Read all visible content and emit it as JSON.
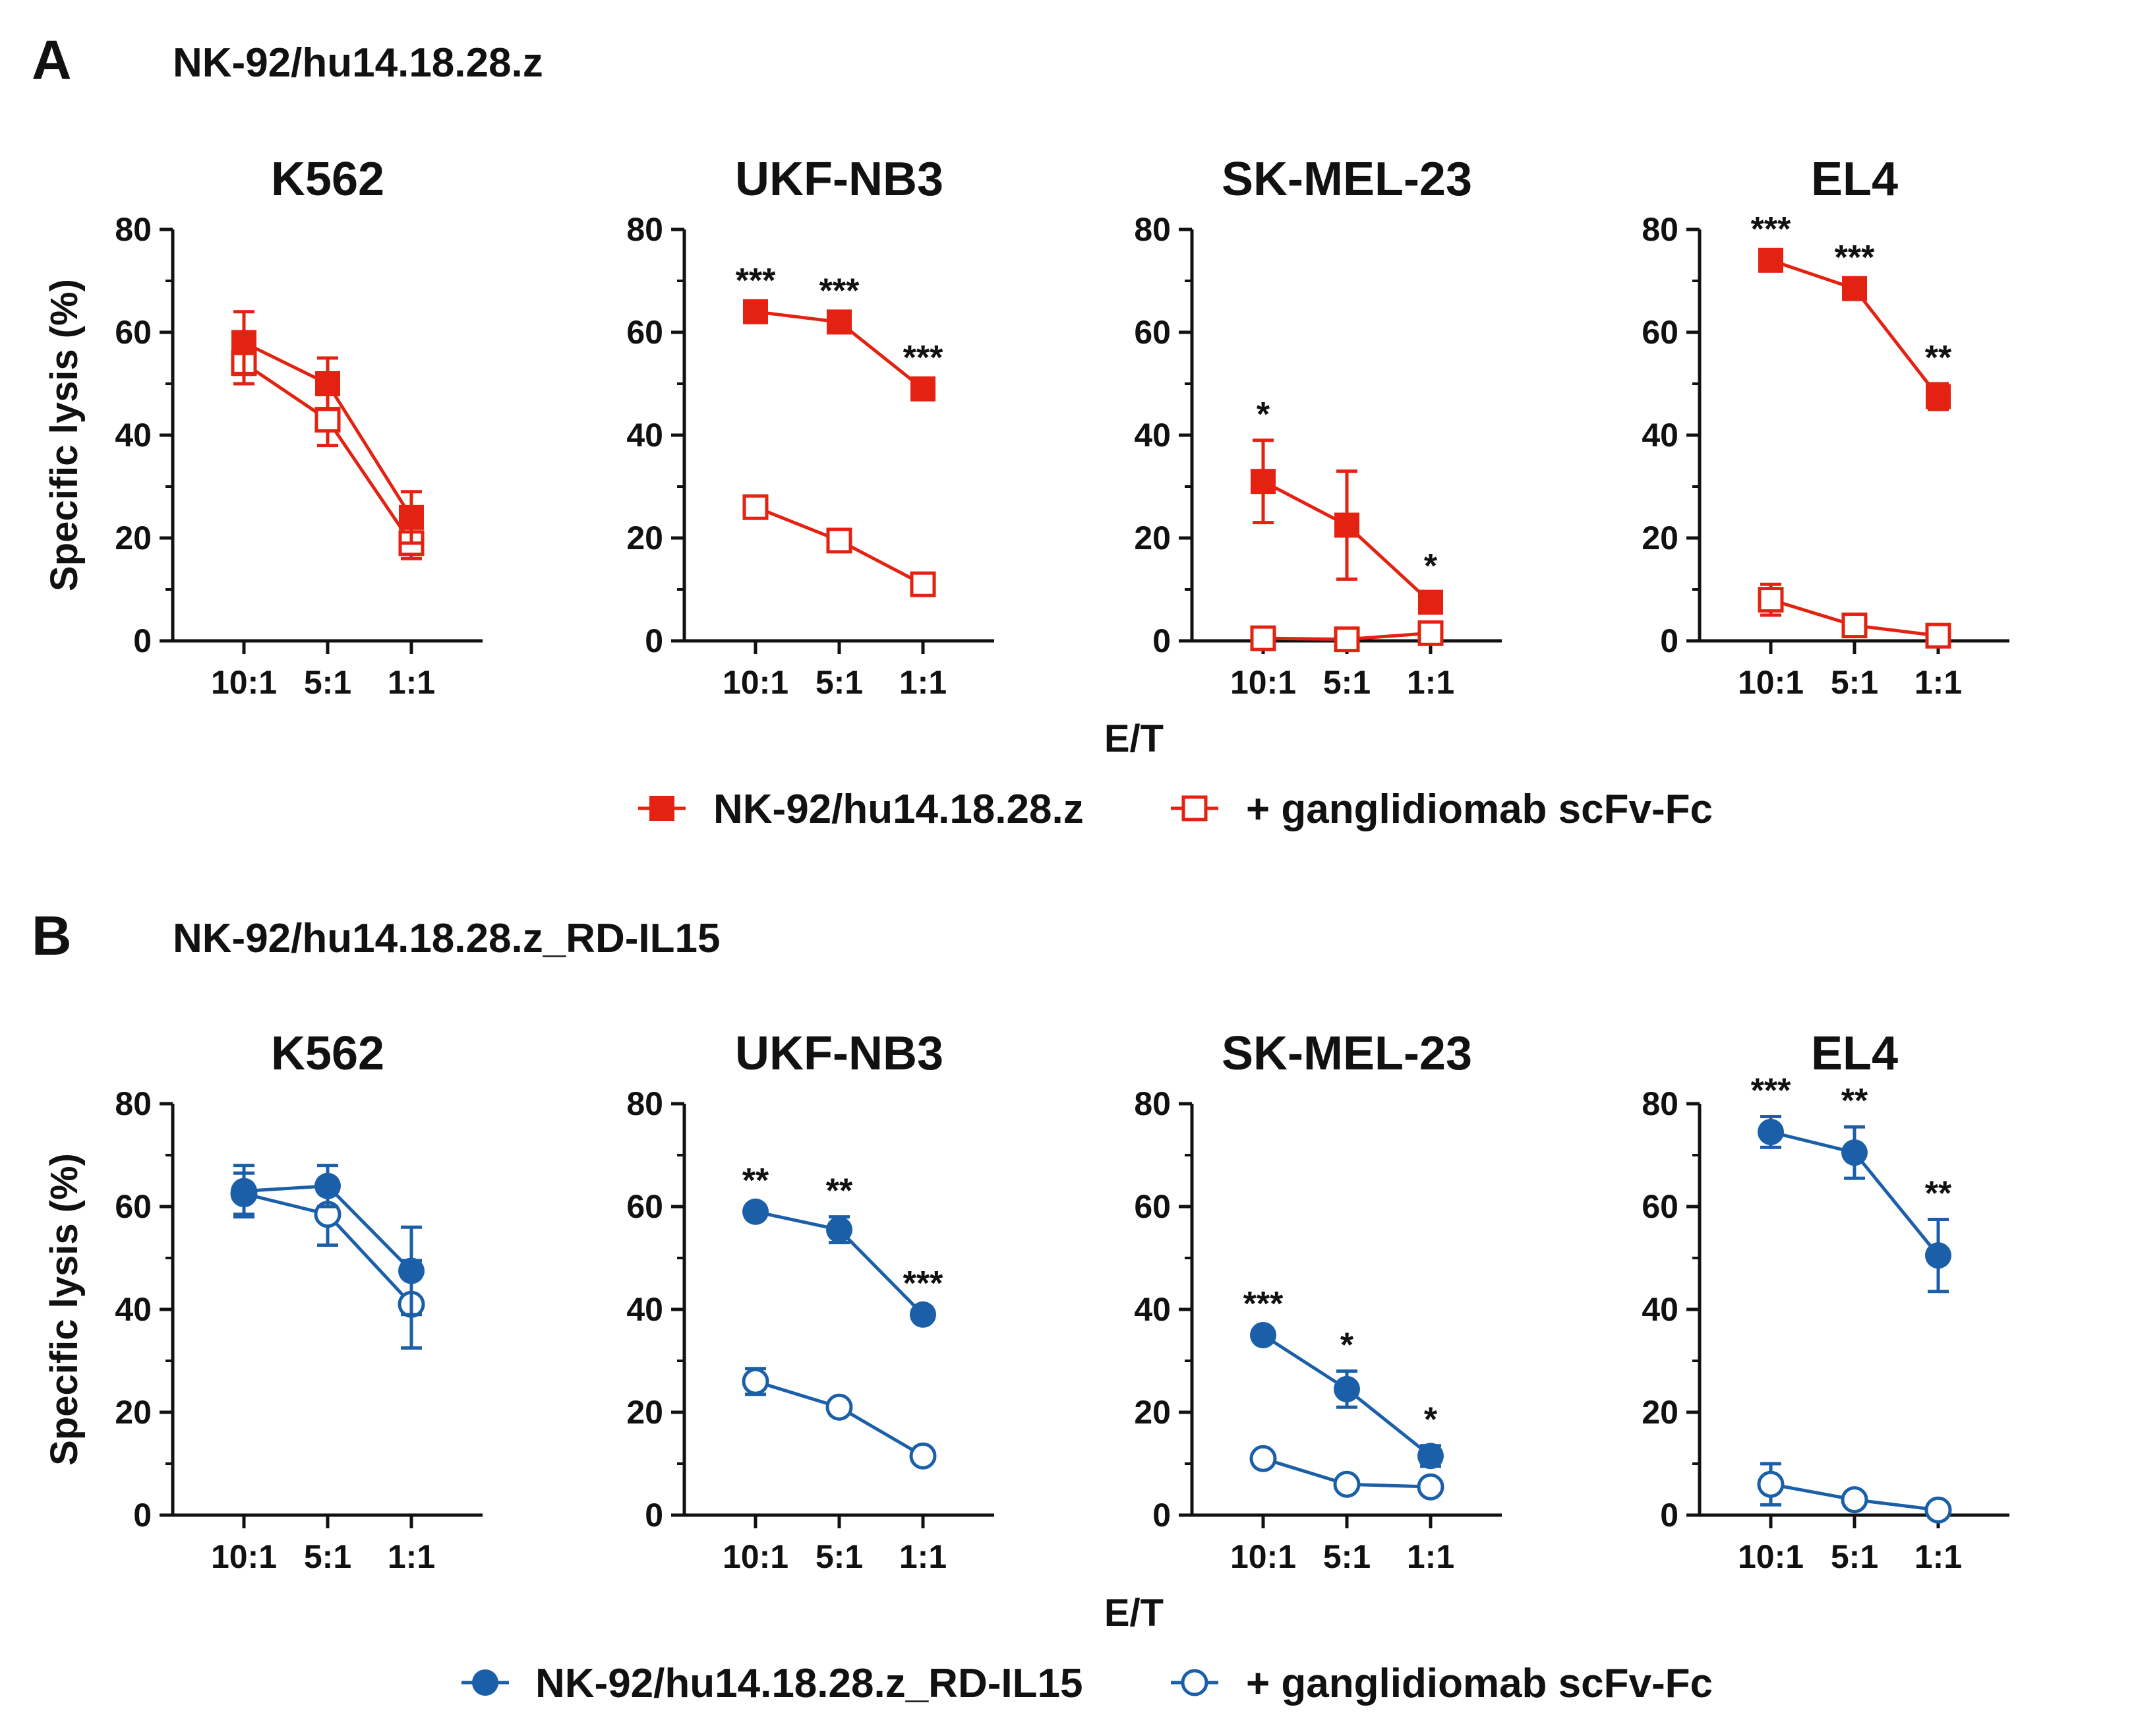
{
  "panels": [
    {
      "letter": "A",
      "title": "NK-92/hu14.18.28.z",
      "color": "#e32212",
      "marker": "square",
      "legend": {
        "filled_label": "NK-92/hu14.18.28.z",
        "open_label": "+ ganglidiomab scFv-Fc"
      },
      "xlabel": "E/T"
    },
    {
      "letter": "B",
      "title": "NK-92/hu14.18.28.z_RD-IL15",
      "color": "#1a5fa8",
      "marker": "circle",
      "legend": {
        "filled_label": "NK-92/hu14.18.28.z_RD-IL15",
        "open_label": "+ ganglidiomab scFv-Fc"
      },
      "xlabel": "E/T"
    }
  ],
  "chart_data": [
    {
      "type": "line",
      "panel": "A",
      "title": "K562",
      "categories": [
        "10:1",
        "5:1",
        "1:1"
      ],
      "ylabel": "Specific lysis  (%)",
      "ylim": [
        0,
        80
      ],
      "yticks": [
        "0",
        "20",
        "40",
        "60",
        "80"
      ],
      "series": [
        {
          "name": "NK-92/hu14.18.28.z",
          "filled": true,
          "values": [
            58,
            50,
            24
          ],
          "err": [
            6,
            5,
            5
          ]
        },
        {
          "name": "+ ganglidiomab scFv-Fc",
          "filled": false,
          "values": [
            54,
            43,
            19
          ],
          "err": [
            4,
            5,
            3
          ]
        }
      ],
      "annotations": [
        "",
        "",
        ""
      ]
    },
    {
      "type": "line",
      "panel": "A",
      "title": "UKF-NB3",
      "categories": [
        "10:1",
        "5:1",
        "1:1"
      ],
      "ylim": [
        0,
        80
      ],
      "yticks": [
        "0",
        "20",
        "40",
        "60",
        "80"
      ],
      "series": [
        {
          "name": "NK-92/hu14.18.28.z",
          "filled": true,
          "values": [
            64,
            62,
            49
          ],
          "err": [
            1,
            1,
            1
          ]
        },
        {
          "name": "+ ganglidiomab scFv-Fc",
          "filled": false,
          "values": [
            26,
            19.5,
            11
          ],
          "err": [
            1,
            1,
            1
          ]
        }
      ],
      "annotations": [
        "***",
        "***",
        "***"
      ]
    },
    {
      "type": "line",
      "panel": "A",
      "title": "SK-MEL-23",
      "categories": [
        "10:1",
        "5:1",
        "1:1"
      ],
      "ylim": [
        0,
        80
      ],
      "yticks": [
        "0",
        "20",
        "40",
        "60",
        "80"
      ],
      "series": [
        {
          "name": "NK-92/hu14.18.28.z",
          "filled": true,
          "values": [
            31,
            22.5,
            7.5
          ],
          "err": [
            8,
            10.5,
            2
          ]
        },
        {
          "name": "+ ganglidiomab scFv-Fc",
          "filled": false,
          "values": [
            0.5,
            0.3,
            1.5
          ],
          "err": [
            0.5,
            0.5,
            0.5
          ]
        }
      ],
      "annotations": [
        "*",
        "",
        "*"
      ]
    },
    {
      "type": "line",
      "panel": "A",
      "title": "EL4",
      "categories": [
        "10:1",
        "5:1",
        "1:1"
      ],
      "ylim": [
        0,
        80
      ],
      "yticks": [
        "0",
        "20",
        "40",
        "60",
        "80"
      ],
      "series": [
        {
          "name": "NK-92/hu14.18.28.z",
          "filled": true,
          "values": [
            74,
            68.5,
            47.5
          ],
          "err": [
            1,
            1,
            2.5
          ]
        },
        {
          "name": "+ ganglidiomab scFv-Fc",
          "filled": false,
          "values": [
            8,
            3,
            1
          ],
          "err": [
            3,
            1,
            0.5
          ]
        }
      ],
      "annotations": [
        "***",
        "***",
        "**"
      ]
    },
    {
      "type": "line",
      "panel": "B",
      "title": "K562",
      "categories": [
        "10:1",
        "5:1",
        "1:1"
      ],
      "ylabel": "Specific lysis  (%)",
      "ylim": [
        0,
        80
      ],
      "yticks": [
        "0",
        "20",
        "40",
        "60",
        "80"
      ],
      "series": [
        {
          "name": "NK-92/hu14.18.28.z_RD-IL15",
          "filled": true,
          "values": [
            63,
            64,
            47.5
          ],
          "err": [
            5,
            4,
            8.5
          ]
        },
        {
          "name": "+ ganglidiomab scFv-Fc",
          "filled": false,
          "values": [
            62.5,
            58.5,
            41
          ],
          "err": [
            4,
            6,
            8.5
          ]
        }
      ],
      "annotations": [
        "",
        "",
        ""
      ]
    },
    {
      "type": "line",
      "panel": "B",
      "title": "UKF-NB3",
      "categories": [
        "10:1",
        "5:1",
        "1:1"
      ],
      "ylim": [
        0,
        80
      ],
      "yticks": [
        "0",
        "20",
        "40",
        "60",
        "80"
      ],
      "series": [
        {
          "name": "NK-92/hu14.18.28.z_RD-IL15",
          "filled": true,
          "values": [
            59,
            55.5,
            39
          ],
          "err": [
            1,
            2.5,
            1
          ]
        },
        {
          "name": "+ ganglidiomab scFv-Fc",
          "filled": false,
          "values": [
            26,
            21,
            11.5
          ],
          "err": [
            2.5,
            1,
            0.5
          ]
        }
      ],
      "annotations": [
        "**",
        "**",
        "***"
      ]
    },
    {
      "type": "line",
      "panel": "B",
      "title": "SK-MEL-23",
      "categories": [
        "10:1",
        "5:1",
        "1:1"
      ],
      "ylim": [
        0,
        80
      ],
      "yticks": [
        "0",
        "20",
        "40",
        "60",
        "80"
      ],
      "series": [
        {
          "name": "NK-92/hu14.18.28.z_RD-IL15",
          "filled": true,
          "values": [
            35,
            24.5,
            11.5
          ],
          "err": [
            1,
            3.5,
            2
          ]
        },
        {
          "name": "+ ganglidiomab scFv-Fc",
          "filled": false,
          "values": [
            11,
            6,
            5.5
          ],
          "err": [
            0.5,
            0.5,
            0.5
          ]
        }
      ],
      "annotations": [
        "***",
        "*",
        "*"
      ]
    },
    {
      "type": "line",
      "panel": "B",
      "title": "EL4",
      "categories": [
        "10:1",
        "5:1",
        "1:1"
      ],
      "ylim": [
        0,
        80
      ],
      "yticks": [
        "0",
        "20",
        "40",
        "60",
        "80"
      ],
      "series": [
        {
          "name": "NK-92/hu14.18.28.z_RD-IL15",
          "filled": true,
          "values": [
            74.5,
            70.5,
            50.5
          ],
          "err": [
            3,
            5,
            7
          ]
        },
        {
          "name": "+ ganglidiomab scFv-Fc",
          "filled": false,
          "values": [
            6,
            3,
            1
          ],
          "err": [
            4,
            0.5,
            0.5
          ]
        }
      ],
      "annotations": [
        "***",
        "**",
        "**"
      ]
    }
  ]
}
